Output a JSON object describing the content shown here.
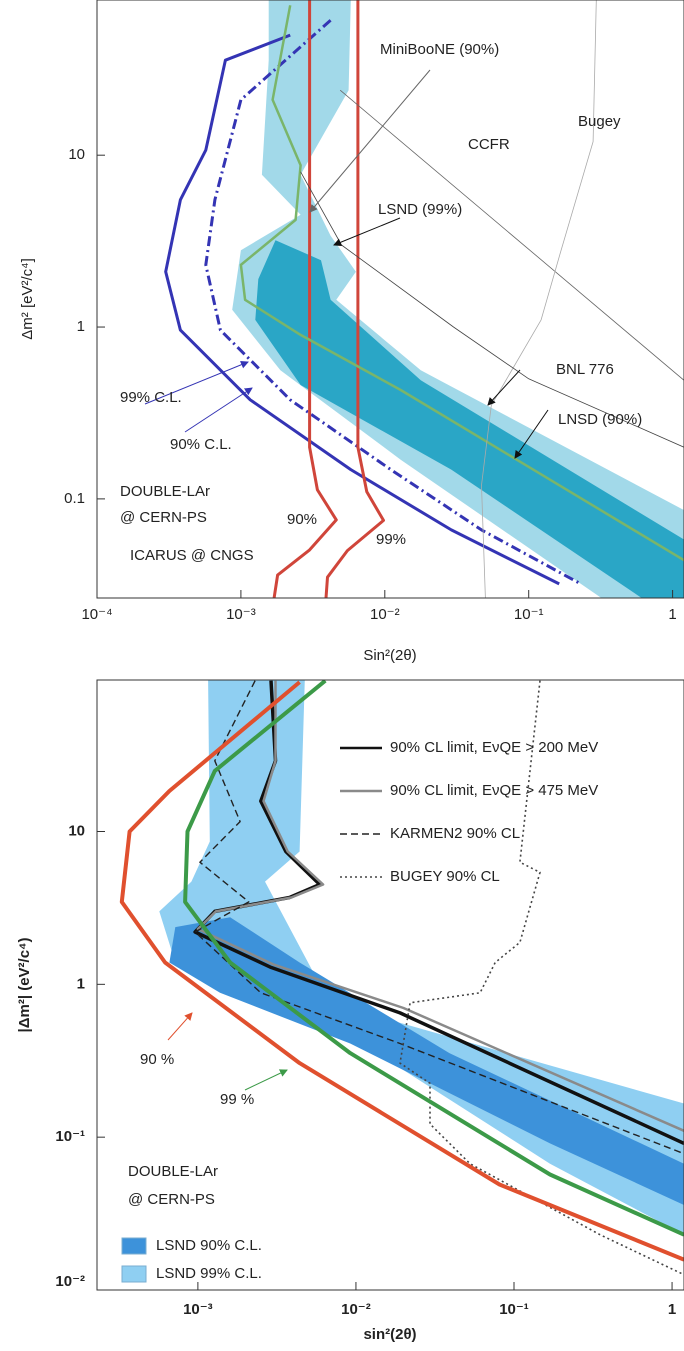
{
  "chart_data": [
    {
      "type": "line",
      "log_x": true,
      "log_y": true,
      "grid": false,
      "x_label": "Sin²(2θ)",
      "y_label": "Δm² [eV²/c⁴]",
      "xlim": [
        0.0001,
        1.2
      ],
      "ylim": [
        0.0265,
        80
      ],
      "xticks": [
        {
          "value": 0.0001,
          "label": "10⁻⁴"
        },
        {
          "value": 0.001,
          "label": "10⁻³"
        },
        {
          "value": 0.01,
          "label": "10⁻²"
        },
        {
          "value": 0.1,
          "label": "10⁻¹"
        },
        1
      ],
      "yticks": [
        0.1,
        1,
        10
      ],
      "regions": [
        {
          "name": "LNSD (90%)",
          "color": "#2aa6c6",
          "x": [
            0.00174,
            0.0036,
            0.0042,
            0.0178,
            1.2,
            1.2,
            0.61,
            0.029,
            0.0026,
            0.00126,
            0.00132
          ],
          "y": [
            3.2,
            2.45,
            1.44,
            0.49,
            0.058,
            0.0265,
            0.0265,
            0.148,
            0.46,
            1.1,
            1.9
          ]
        },
        {
          "name": "LSND (99%)",
          "color": "#a2d9e9",
          "x": [
            0.00156,
            0.0058,
            0.0056,
            0.0026,
            0.0042,
            0.0063,
            0.0046,
            0.0178,
            1.2,
            1.2,
            0.32,
            0.0129,
            0.00188,
            0.00087,
            0.001,
            0.0026,
            0.0014,
            0.00156
          ],
          "y": [
            80,
            80,
            23.9,
            7.7,
            3.4,
            2.1,
            1.44,
            0.56,
            0.086,
            0.0265,
            0.0265,
            0.169,
            0.56,
            1.26,
            2.8,
            4.5,
            7.7,
            35.7
          ]
        }
      ],
      "series": [
        {
          "name": "99% C.L.",
          "color": "#3434b4",
          "dash": "solid",
          "x": [
            0.0022,
            0.00078,
            0.00057,
            0.00038,
            0.0003,
            0.00038,
            0.00116,
            0.0058,
            0.029,
            0.163
          ],
          "y": [
            50,
            35.7,
            10.7,
            5.5,
            2.1,
            0.96,
            0.377,
            0.148,
            0.066,
            0.032
          ]
        },
        {
          "name": "90% C.L.",
          "color": "#3434b4",
          "dash": "dashdot",
          "x": [
            0.0042,
            0.001,
            0.00066,
            0.00057,
            0.00072,
            0.0022,
            0.011,
            0.047,
            0.23
          ],
          "y": [
            61,
            21,
            5.5,
            2.3,
            0.96,
            0.377,
            0.148,
            0.066,
            0.032
          ]
        },
        {
          "name": "90%",
          "color": "#d0453a",
          "dash": "solid",
          "x": [
            0.003,
            0.003,
            0.0034,
            0.0046,
            0.003,
            0.0018,
            0.0017
          ],
          "y": [
            80,
            0.2,
            0.113,
            0.0755,
            0.0505,
            0.036,
            0.0265
          ]
        },
        {
          "name": "99%",
          "color": "#d0453a",
          "dash": "solid",
          "x": [
            0.0065,
            0.0065,
            0.0075,
            0.0098,
            0.0055,
            0.004,
            0.0039
          ],
          "y": [
            80,
            0.2,
            0.11,
            0.075,
            0.05,
            0.035,
            0.0265
          ]
        },
        {
          "name": "MiniBooNE (90%)",
          "color": "#7ab56a",
          "dash": "solid",
          "x": [
            0.0022,
            0.00166,
            0.0026,
            0.0024,
            0.001,
            0.00107,
            0.0026,
            0.0129,
            1.2
          ],
          "y": [
            74.5,
            21,
            8.75,
            4.2,
            2.3,
            1.44,
            0.9,
            0.43,
            0.044
          ]
        },
        {
          "name": "CCFR",
          "color": "#666666",
          "dash": "solid",
          "x": [
            0.0049,
            1.2
          ],
          "y": [
            23.9,
            0.49
          ]
        },
        {
          "name": "Bugey",
          "color": "#aaaaaa",
          "dash": "solid",
          "x": [
            0.295,
            0.28,
            0.168,
            0.122,
            0.055,
            0.047,
            0.05
          ],
          "y": [
            80,
            12,
            2.8,
            1.1,
            0.35,
            0.12,
            0.0265
          ]
        },
        {
          "name": "BNL 776",
          "color": "#444444",
          "dash": "solid",
          "x": [
            0.0026,
            0.005,
            0.03,
            0.1,
            1.2
          ],
          "y": [
            8,
            3,
            1,
            0.5,
            0.2
          ]
        }
      ],
      "annotations": [
        "DOUBLE-LAr",
        "@ CERN-PS",
        "ICARUS @ CNGS"
      ]
    },
    {
      "type": "line",
      "log_x": true,
      "log_y": true,
      "grid": false,
      "x_label": "sin²(2θ)",
      "y_label": "|Δm²| (eV²/c⁴)",
      "xlim": [
        0.00023,
        1.19
      ],
      "ylim": [
        0.01,
        98
      ],
      "xticks": [
        {
          "value": 0.001,
          "label": "10⁻³"
        },
        {
          "value": 0.01,
          "label": "10⁻²"
        },
        {
          "value": 0.1,
          "label": "10⁻¹"
        },
        1
      ],
      "yticks": [
        {
          "value": 0.01,
          "label": "10⁻²"
        },
        {
          "value": 0.1,
          "label": "10⁻¹"
        },
        1,
        10
      ],
      "regions": [
        {
          "name": "LSND 90% C.L.",
          "color": "#3d92da",
          "x": [
            0.00072,
            0.0016,
            0.0044,
            0.039,
            1.19,
            1.19,
            0.169,
            0.0092,
            0.00138,
            0.00066
          ],
          "y": [
            2.37,
            2.75,
            1.39,
            0.355,
            0.067,
            0.036,
            0.091,
            0.41,
            0.88,
            1.39
          ]
        },
        {
          "name": "LSND 99% C.L.",
          "color": "#8fcff2",
          "x": [
            0.00116,
            0.00475,
            0.0044,
            0.00266,
            0.0068,
            1.19,
            1.19,
            0.169,
            0.0068,
            0.00072,
            0.00057,
            0.00091,
            0.00119
          ],
          "y": [
            98,
            98,
            7.4,
            4.7,
            0.757,
            0.166,
            0.023,
            0.067,
            0.56,
            1.39,
            3.0,
            4.7,
            8.6
          ]
        }
      ],
      "series": [
        {
          "name": "90% CL limit, EνQE > 200 MeV",
          "color": "#111111",
          "dash": "solid",
          "legend": true,
          "x": [
            0.0029,
            0.0031,
            0.0025,
            0.0036,
            0.0059,
            0.0038,
            0.00128,
            0.00096,
            0.0029,
            0.019,
            1.19
          ],
          "y": [
            97,
            29,
            15.8,
            7.4,
            4.5,
            3.7,
            3.0,
            2.2,
            1.29,
            0.65,
            0.091
          ]
        },
        {
          "name": "90% CL limit, EνQE > 475 MeV",
          "color": "#8a8a8a",
          "dash": "solid",
          "legend": true,
          "x": [
            0.0031,
            0.0031,
            0.0026,
            0.0037,
            0.0062,
            0.0039,
            0.0013,
            0.001,
            0.003,
            0.02,
            1.19
          ],
          "y": [
            97,
            29,
            15.8,
            7.4,
            4.5,
            3.7,
            3.0,
            2.3,
            1.35,
            0.7,
            0.11
          ]
        },
        {
          "name": "KARMEN2 90% CL",
          "color": "#222222",
          "dash": "dashed",
          "legend": true,
          "x": [
            0.0023,
            0.00128,
            0.00185,
            0.00103,
            0.0021,
            0.00096,
            0.0025,
            0.019,
            1.19
          ],
          "y": [
            97,
            29,
            11.6,
            6.3,
            3.46,
            2.2,
            0.88,
            0.41,
            0.078
          ]
        },
        {
          "name": "BUGEY 90% CL",
          "color": "#444444",
          "dash": "dotted",
          "legend": true,
          "x": [
            0.146,
            0.109,
            0.146,
            0.109,
            0.076,
            0.061,
            0.022,
            0.019,
            0.0294,
            0.0294,
            0.0527,
            0.35,
            1.19
          ],
          "y": [
            97,
            6.3,
            5.4,
            1.88,
            1.39,
            0.88,
            0.757,
            0.305,
            0.225,
            0.122,
            0.067,
            0.023,
            0.0126
          ]
        },
        {
          "name": "90 %",
          "color": "#e0502e",
          "dash": "solid",
          "legend": false,
          "x": [
            0.0044,
            0.00066,
            0.00037,
            0.00033,
            0.00062,
            0.0044,
            0.081,
            1.19
          ],
          "y": [
            95,
            18.4,
            10,
            3.46,
            1.39,
            0.305,
            0.049,
            0.0158
          ]
        },
        {
          "name": "99 %",
          "color": "#3c9a48",
          "dash": "solid",
          "legend": false,
          "x": [
            0.0064,
            0.00128,
            0.00086,
            0.00083,
            0.0016,
            0.0092,
            0.169,
            1.19
          ],
          "y": [
            97,
            24.9,
            10,
            3.46,
            1.39,
            0.355,
            0.057,
            0.023
          ]
        }
      ],
      "annotations": [
        "DOUBLE-LAr",
        "@ CERN-PS"
      ]
    }
  ]
}
